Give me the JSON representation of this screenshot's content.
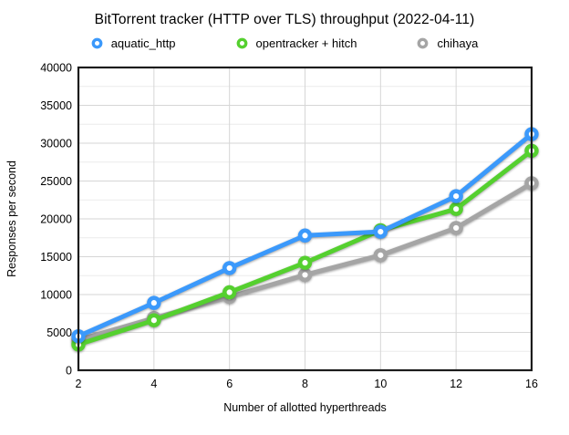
{
  "chart_data": {
    "type": "line",
    "title": "BitTorrent tracker (HTTP over TLS) throughput (2022-04-11)",
    "xlabel": "Number of allotted hyperthreads",
    "ylabel": "Responses per second",
    "categories": [
      2,
      4,
      6,
      8,
      10,
      12,
      16
    ],
    "x_axis_type": "categorical-equal-spacing",
    "ylim": [
      0,
      40000
    ],
    "y_major_step": 5000,
    "y_minor_step": 2500,
    "grid": true,
    "legend_position": "top",
    "marker_style": "open-circle",
    "series": [
      {
        "name": "aquatic_http",
        "color": "#3b99fb",
        "values": [
          4500,
          8900,
          13500,
          17800,
          18300,
          23000,
          31200
        ]
      },
      {
        "name": "opentracker + hitch",
        "color": "#55d02f",
        "values": [
          3400,
          6600,
          10300,
          14200,
          18500,
          21300,
          29000
        ]
      },
      {
        "name": "chihaya",
        "color": "#a5a5a5",
        "values": [
          4000,
          6900,
          9700,
          12600,
          15200,
          18800,
          24700
        ]
      }
    ],
    "colors": {
      "plot_border": "#1c1c1c",
      "grid_major": "#d6d6d6",
      "grid_minor": "#ebebeb",
      "background": "#ffffff"
    }
  }
}
